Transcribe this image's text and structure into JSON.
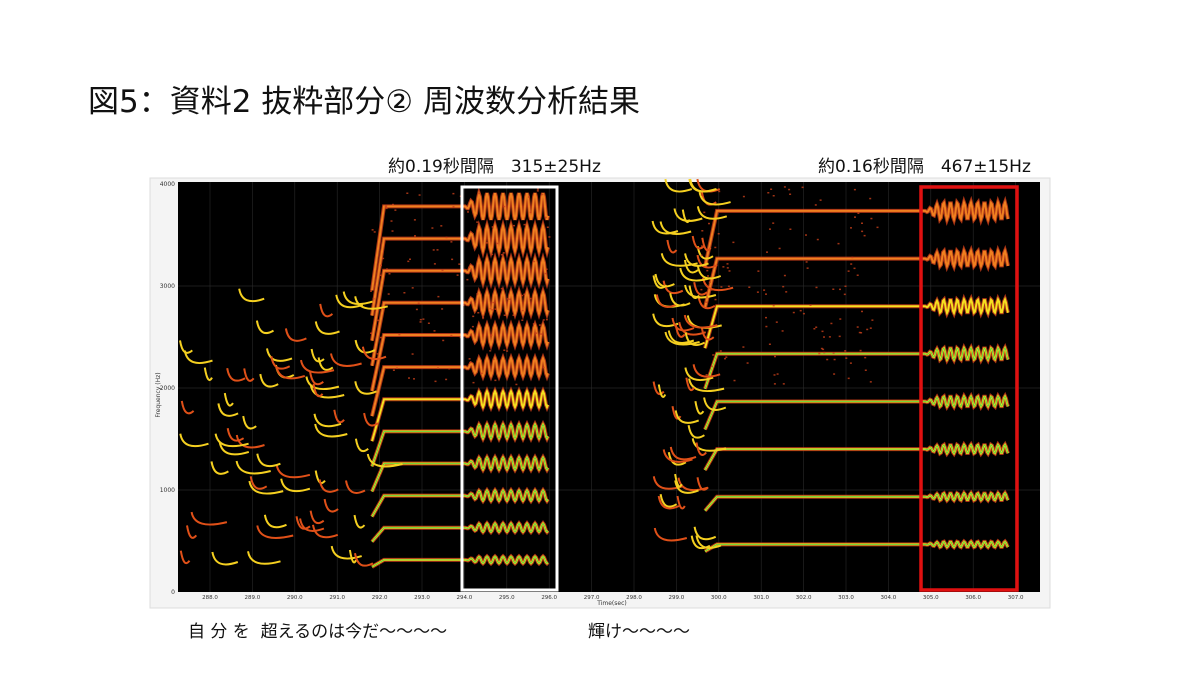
{
  "title": "図5：資料2 抜粋部分② 周波数分析結果",
  "annotations": [
    "約0.19秒間隔　315±25Hz",
    "約0.16秒間隔　467±15Hz"
  ],
  "spectrogram": {
    "y_axis_label": "Frequency (Hz)",
    "x_axis_label": "Time(sec)",
    "y_tick_labels": [
      "0",
      "1000",
      "2000",
      "3000",
      "4000"
    ],
    "x_tick_labels": [
      "288.0",
      "289.0",
      "290.0",
      "291.0",
      "292.0",
      "293.0",
      "294.0",
      "295.0",
      "296.0",
      "297.0",
      "298.0",
      "299.0",
      "300.0",
      "301.0",
      "302.0",
      "303.0",
      "304.0",
      "305.0",
      "306.0",
      "307.0"
    ]
  },
  "captions": [
    "自 分 を  超えるのは今だ〜〜〜〜",
    "輝け〜〜〜〜"
  ]
}
